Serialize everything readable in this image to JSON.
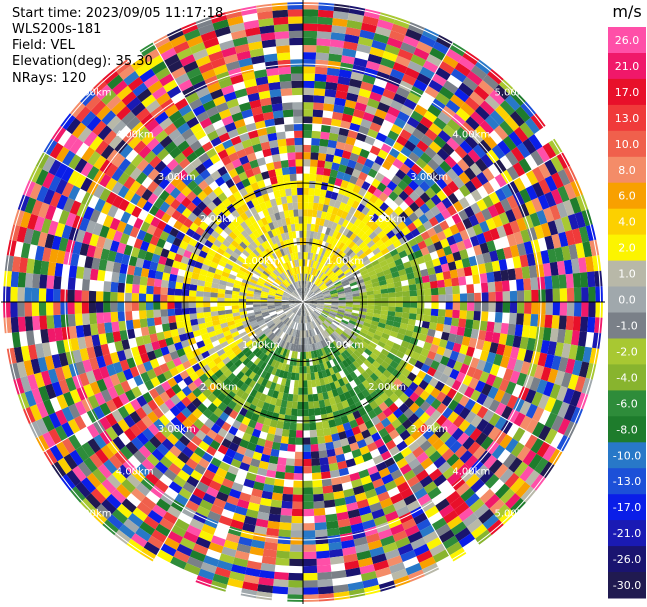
{
  "info": {
    "start_time": "Start time: 2023/09/05 11:17:18",
    "instrument": "WLS200s-181",
    "field": "Field: VEL",
    "elevation": "Elevation(deg): 35.30",
    "nrays": "NRays: 120"
  },
  "chart_data": {
    "type": "heatmap",
    "subtype": "radar-ppi",
    "field": "VEL",
    "units": "m/s",
    "range_ring_labels": [
      "1.00km",
      "2.00km",
      "3.00km",
      "4.00km",
      "5.00km"
    ],
    "range_max_km": 5.0,
    "azimuth_spokes_deg": [
      0,
      30,
      60,
      90,
      120,
      150,
      180,
      210,
      240,
      270,
      300,
      330
    ],
    "colorbar": {
      "title": "m/s",
      "tick_labels": [
        "26.0",
        "21.0",
        "17.0",
        "13.0",
        "10.0",
        "8.0",
        "6.0",
        "4.0",
        "2.0",
        "1.0",
        "0.0",
        "-1.0",
        "-2.0",
        "-4.0",
        "-6.0",
        "-8.0",
        "-10.0",
        "-13.0",
        "-17.0",
        "-21.0",
        "-26.0",
        "-30.0"
      ],
      "colors": [
        "#ff4fa8",
        "#f0186a",
        "#e8102a",
        "#f03a3a",
        "#f0604c",
        "#f48c68",
        "#f8a000",
        "#fcd000",
        "#fcf400",
        "#b8b8a8",
        "#a0a8ac",
        "#7a8088",
        "#a8c832",
        "#88b42e",
        "#2e8c3a",
        "#1e7c2c",
        "#2878c8",
        "#1c50d8",
        "#0a1ee8",
        "#1a1ab4",
        "#1a1470",
        "#201a50"
      ]
    },
    "regions": [
      {
        "range_km": [
          0.0,
          1.0
        ],
        "description_values": "mixed 0.0 to 4.0 near center"
      },
      {
        "range_km": [
          1.0,
          2.0
        ],
        "description_values": "north 2.0 to 4.0, south -2.0 to -6.0"
      },
      {
        "range_km": [
          2.0,
          5.1
        ],
        "description_values": "noise, all values"
      }
    ]
  }
}
